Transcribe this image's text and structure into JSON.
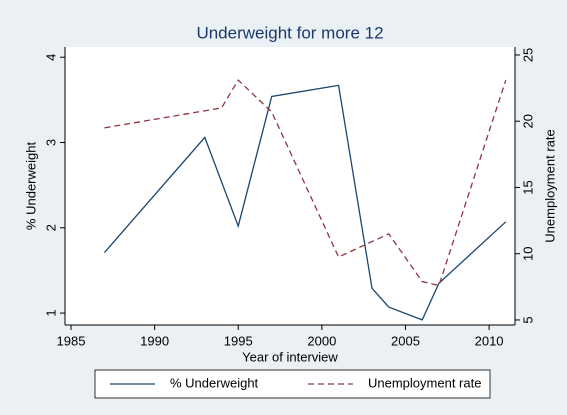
{
  "chart_data": {
    "type": "line",
    "title": "Underweight for more 12",
    "x_label": "Year of interview",
    "y_label": "% Underweight",
    "y2_label": "Unemployment rate",
    "series": [
      {
        "name": "% Underweight",
        "color": "#1a476f",
        "line_style": "solid",
        "x": [
          1987,
          1993,
          1995,
          1997,
          2001,
          2003,
          2004,
          2006,
          2007,
          2011
        ],
        "values": [
          1.71,
          3.06,
          2.02,
          3.54,
          3.67,
          1.29,
          1.07,
          0.92,
          1.35,
          2.07
        ]
      },
      {
        "name": "Unemployment rate",
        "color": "#90353b",
        "line_style": "dashed",
        "axis": "y2",
        "x": [
          1987,
          1994,
          1995,
          1997,
          2001,
          2004,
          2006,
          2007,
          2011
        ],
        "values": [
          19.5,
          21,
          23.1,
          20.7,
          9.75,
          11.5,
          7.9,
          7.6,
          23.1
        ]
      }
    ],
    "xlim": [
      1984.64,
      2011.55
    ],
    "xticks": [
      1985,
      1990,
      1995,
      2000,
      2005,
      2010
    ],
    "ylim": [
      0.86,
      4.12
    ],
    "yticks": [
      1,
      2,
      3,
      4
    ],
    "y2lim": [
      4.62,
      25.6
    ],
    "y2ticks": [
      5,
      10,
      15,
      20,
      25
    ],
    "legend": "bottom"
  }
}
